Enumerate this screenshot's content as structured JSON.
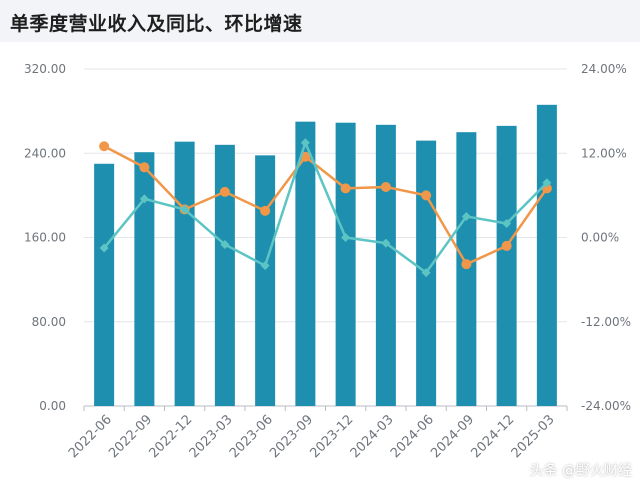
{
  "header": {
    "title": "单季度营业收入及同比、环比增速"
  },
  "watermark": "头条 @野火财经",
  "chart_data": {
    "type": "bar",
    "categories": [
      "2022-06",
      "2022-09",
      "2022-12",
      "2023-03",
      "2023-06",
      "2023-09",
      "2023-12",
      "2024-03",
      "2024-06",
      "2024-09",
      "2024-12",
      "2025-03"
    ],
    "series": [
      {
        "values": [
          230,
          241,
          251,
          248,
          238,
          270,
          269,
          267,
          252,
          260,
          266,
          286
        ]
      },
      {
        "values": [
          13.0,
          10.0,
          4.0,
          6.5,
          3.8,
          11.5,
          7.0,
          7.2,
          6.0,
          -3.8,
          -1.2,
          7.0
        ]
      },
      {
        "values": [
          -1.5,
          5.5,
          4.0,
          -1.0,
          -4.0,
          13.5,
          0.0,
          -0.8,
          -5.0,
          3.0,
          2.0,
          7.8
        ]
      }
    ],
    "y_left": {
      "ylim": [
        0,
        320
      ],
      "ticks": [
        "0.00",
        "80.00",
        "160.00",
        "240.00",
        "320.00"
      ]
    },
    "y_right": {
      "ylim": [
        -24,
        24
      ],
      "ticks": [
        "-24.00%",
        "-12.00%",
        "0.00%",
        "12.00%",
        "24.00%"
      ]
    },
    "grid": true,
    "colors": {
      "bar": "#1f8fb0",
      "line1": "#f0974a",
      "line2": "#5cc5c4",
      "grid": "#e3e6ea",
      "axis": "#8a8f96"
    }
  }
}
